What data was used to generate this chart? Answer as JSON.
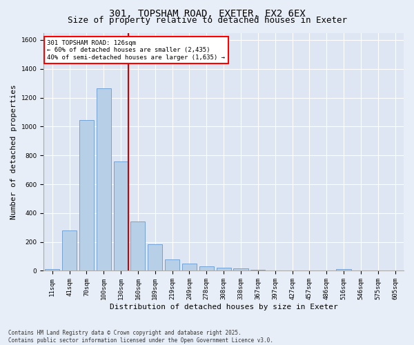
{
  "title": "301, TOPSHAM ROAD, EXETER, EX2 6EX",
  "subtitle": "Size of property relative to detached houses in Exeter",
  "xlabel": "Distribution of detached houses by size in Exeter",
  "ylabel": "Number of detached properties",
  "categories": [
    "11sqm",
    "41sqm",
    "70sqm",
    "100sqm",
    "130sqm",
    "160sqm",
    "189sqm",
    "219sqm",
    "249sqm",
    "278sqm",
    "308sqm",
    "338sqm",
    "367sqm",
    "397sqm",
    "427sqm",
    "457sqm",
    "486sqm",
    "516sqm",
    "546sqm",
    "575sqm",
    "605sqm"
  ],
  "values": [
    10,
    280,
    1045,
    1265,
    760,
    340,
    185,
    80,
    48,
    32,
    22,
    15,
    8,
    2,
    1,
    1,
    1,
    10,
    1,
    1,
    1
  ],
  "bar_color": "#b8cfe8",
  "bar_edge_color": "#6699cc",
  "highlight_index": 4,
  "highlight_color": "#cc0000",
  "property_label": "301 TOPSHAM ROAD: 126sqm",
  "annotation_line1": "← 60% of detached houses are smaller (2,435)",
  "annotation_line2": "40% of semi-detached houses are larger (1,635) →",
  "ylim": [
    0,
    1650
  ],
  "yticks": [
    0,
    200,
    400,
    600,
    800,
    1000,
    1200,
    1400,
    1600
  ],
  "footnote1": "Contains HM Land Registry data © Crown copyright and database right 2025.",
  "footnote2": "Contains public sector information licensed under the Open Government Licence v3.0.",
  "bg_color": "#e8eef7",
  "plot_bg_color": "#dde6f2",
  "grid_color": "#ffffff",
  "title_fontsize": 10,
  "subtitle_fontsize": 9,
  "tick_fontsize": 6.5,
  "ylabel_fontsize": 8,
  "xlabel_fontsize": 8,
  "footnote_fontsize": 5.5
}
